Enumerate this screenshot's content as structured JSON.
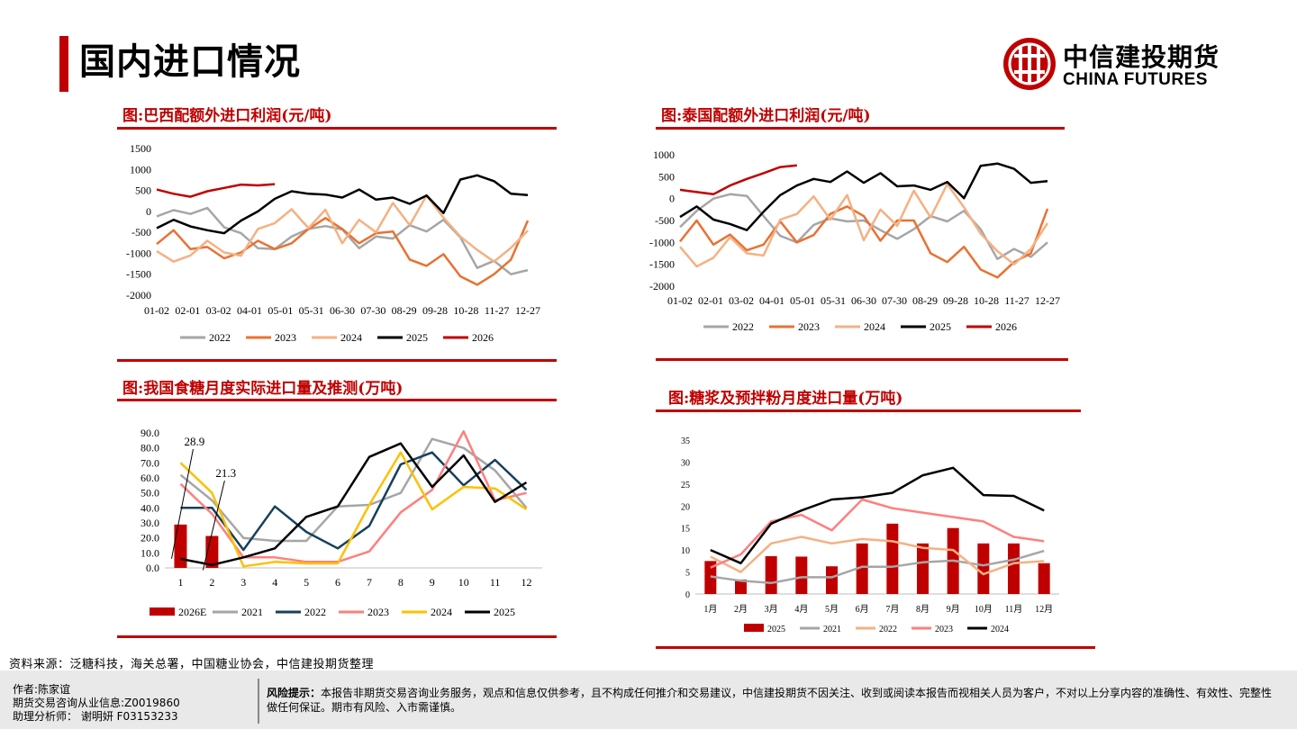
{
  "page": {
    "title": "国内进口情况"
  },
  "logo": {
    "cn": "中信建投期货",
    "en": "CHINA FUTURES"
  },
  "source": "资料来源：泛糖科技，海关总署，中国糖业协会，中信建投期货整理",
  "footer": {
    "author": "作者:陈家谊",
    "license": "期货交易咨询从业信息:Z0019860",
    "assistant": "助理分析师： 谢明妍 F03153233",
    "risk_label": "风险提示：",
    "risk_text": "本报告非期货交易咨询业务服务，观点和信息仅供参考，且不构成任何推介和交易建议，中信建投期货不因关注、收到或阅读本报告而视相关人员为客户，不对以上分享内容的准确性、有效性、完整性做任何保证。期市有风险、入市需谨慎。"
  },
  "colors": {
    "2021": "#a6a6a6",
    "2022": "#a6a6a6",
    "2023": "#e97132",
    "2024": "#f4b183",
    "2025": "#000000",
    "2026": "#c00000"
  },
  "chart_data": [
    {
      "id": "brazil",
      "type": "line",
      "title": "图:巴西配额外进口利润(元/吨)",
      "yticks": [
        1500,
        1000,
        500,
        0,
        -500,
        -1000,
        -1500,
        -2000
      ],
      "ylim": [
        -2000,
        1500
      ],
      "xticks": [
        "01-02",
        "02-01",
        "03-02",
        "04-01",
        "05-01",
        "05-31",
        "06-30",
        "07-30",
        "08-29",
        "09-28",
        "10-28",
        "11-27",
        "12-27"
      ],
      "series": [
        {
          "name": "2022",
          "color": "#a6a6a6",
          "values": [
            -120,
            30,
            -60,
            80,
            -380,
            -520,
            -880,
            -900,
            -600,
            -420,
            -350,
            -430,
            -880,
            -600,
            -650,
            -330,
            -480,
            -200,
            -620,
            -1350,
            -1180,
            -1500,
            -1400
          ]
        },
        {
          "name": "2023",
          "color": "#e97132",
          "values": [
            -780,
            -450,
            -900,
            -850,
            -1120,
            -980,
            -700,
            -900,
            -760,
            -420,
            -160,
            -420,
            -760,
            -520,
            -480,
            -1150,
            -1300,
            -1020,
            -1550,
            -1750,
            -1500,
            -1150,
            -220
          ]
        },
        {
          "name": "2024",
          "color": "#f4b183",
          "values": [
            -950,
            -1200,
            -1050,
            -700,
            -980,
            -1060,
            -420,
            -280,
            50,
            -400,
            40,
            -760,
            -200,
            -500,
            200,
            -330,
            380,
            -150,
            -600,
            -920,
            -1200,
            -870,
            -460
          ]
        },
        {
          "name": "2025",
          "color": "#000000",
          "values": [
            -400,
            -200,
            -360,
            -450,
            -520,
            -220,
            0,
            300,
            480,
            420,
            400,
            330,
            520,
            280,
            330,
            180,
            380,
            -40,
            760,
            860,
            720,
            420,
            390
          ]
        },
        {
          "name": "2026",
          "color": "#c00000",
          "values": [
            520,
            420,
            350,
            480,
            560,
            640,
            620,
            650
          ]
        }
      ]
    },
    {
      "id": "thailand",
      "type": "line",
      "title": "图:泰国配额外进口利润(元/吨)",
      "yticks": [
        1000,
        500,
        0,
        -500,
        -1000,
        -1500,
        -2000
      ],
      "ylim": [
        -2000,
        1000
      ],
      "xticks": [
        "01-02",
        "02-01",
        "03-02",
        "04-01",
        "05-01",
        "05-31",
        "06-30",
        "07-30",
        "08-29",
        "09-28",
        "10-28",
        "11-27",
        "12-27"
      ],
      "series": [
        {
          "name": "2022",
          "color": "#a6a6a6",
          "values": [
            -650,
            -280,
            0,
            100,
            60,
            -400,
            -850,
            -1000,
            -600,
            -450,
            -520,
            -500,
            -720,
            -920,
            -700,
            -400,
            -520,
            -280,
            -700,
            -1380,
            -1150,
            -1330,
            -1000
          ]
        },
        {
          "name": "2023",
          "color": "#e97132",
          "values": [
            -980,
            -500,
            -1050,
            -820,
            -1180,
            -1050,
            -520,
            -1000,
            -830,
            -350,
            -180,
            -400,
            -960,
            -500,
            -500,
            -1250,
            -1450,
            -1100,
            -1620,
            -1800,
            -1450,
            -1250,
            -230
          ]
        },
        {
          "name": "2024",
          "color": "#f4b183",
          "values": [
            -1100,
            -1550,
            -1350,
            -880,
            -1250,
            -1300,
            -480,
            -350,
            50,
            -480,
            80,
            -950,
            -250,
            -620,
            180,
            -430,
            330,
            -200,
            -800,
            -1200,
            -1500,
            -1150,
            -560
          ]
        },
        {
          "name": "2025",
          "color": "#000000",
          "values": [
            -420,
            -180,
            -480,
            -580,
            -720,
            -300,
            80,
            300,
            450,
            380,
            620,
            360,
            580,
            280,
            300,
            200,
            380,
            10,
            750,
            800,
            680,
            360,
            400
          ]
        },
        {
          "name": "2026",
          "color": "#c00000",
          "values": [
            200,
            150,
            100,
            300,
            450,
            580,
            720,
            760
          ]
        }
      ]
    },
    {
      "id": "sugar-import",
      "type": "bar+line",
      "title": "图:我国食糖月度实际进口量及推测(万吨)",
      "categories": [
        "1",
        "2",
        "3",
        "4",
        "5",
        "6",
        "7",
        "8",
        "9",
        "10",
        "11",
        "12"
      ],
      "yticks": [
        "90.0",
        "80.0",
        "70.0",
        "60.0",
        "50.0",
        "40.0",
        "30.0",
        "20.0",
        "10.0",
        "0.0"
      ],
      "ylim": [
        0,
        90
      ],
      "bars": {
        "name": "2026E",
        "color": "#c00000",
        "values": [
          28.9,
          21.3
        ]
      },
      "annotations": [
        "28.9",
        "21.3"
      ],
      "series": [
        {
          "name": "2021",
          "color": "#a6a6a6",
          "values": [
            62,
            45,
            20,
            18,
            18,
            41,
            42,
            50,
            86,
            80,
            65,
            40
          ]
        },
        {
          "name": "2022",
          "color": "#17405c",
          "values": [
            40,
            40,
            12,
            41,
            24,
            13,
            28,
            69,
            77,
            55,
            72,
            52
          ]
        },
        {
          "name": "2023",
          "color": "#ff7f7f",
          "values": [
            56,
            36,
            7,
            7,
            4,
            4,
            11,
            37,
            52,
            91,
            45,
            50
          ]
        },
        {
          "name": "2024",
          "color": "#ffc000",
          "values": [
            70,
            50,
            1,
            4,
            3,
            3,
            42,
            77,
            39,
            54,
            53,
            39
          ]
        },
        {
          "name": "2025",
          "color": "#000000",
          "values": [
            6,
            2,
            7,
            13,
            34,
            41,
            74,
            83,
            54,
            75,
            44,
            57
          ]
        }
      ]
    },
    {
      "id": "syrup-import",
      "type": "bar+line",
      "title": "图:糖浆及预拌粉月度进口量(万吨)",
      "categories": [
        "1月",
        "2月",
        "3月",
        "4月",
        "5月",
        "6月",
        "7月",
        "8月",
        "9月",
        "10月",
        "11月",
        "12月"
      ],
      "yticks": [
        "35",
        "30",
        "25",
        "20",
        "15",
        "10",
        "5",
        "0"
      ],
      "ylim": [
        0,
        35
      ],
      "bars": {
        "name": "2025",
        "color": "#c00000",
        "values": [
          7.5,
          3.3,
          8.6,
          8.5,
          6.3,
          11.5,
          16,
          11.5,
          15,
          11.5,
          11.5,
          7
        ]
      },
      "series": [
        {
          "name": "2021",
          "color": "#a6a6a6",
          "values": [
            4,
            3,
            2.5,
            3.8,
            3.8,
            6.2,
            6.2,
            7.2,
            7.6,
            6.5,
            7.8,
            9.8
          ]
        },
        {
          "name": "2022",
          "color": "#f4b183",
          "values": [
            8.5,
            5,
            11.5,
            13,
            11.5,
            12.5,
            12,
            10.5,
            10,
            4.5,
            7,
            7.5
          ]
        },
        {
          "name": "2023",
          "color": "#ff7f7f",
          "values": [
            6,
            9,
            16.5,
            18,
            14.5,
            21.5,
            19.5,
            18.5,
            17.5,
            16.5,
            13,
            12
          ]
        },
        {
          "name": "2024",
          "color": "#000000",
          "values": [
            10,
            7,
            16,
            19,
            21.5,
            22,
            23,
            27,
            28.7,
            22.5,
            22.3,
            19
          ]
        }
      ]
    }
  ]
}
